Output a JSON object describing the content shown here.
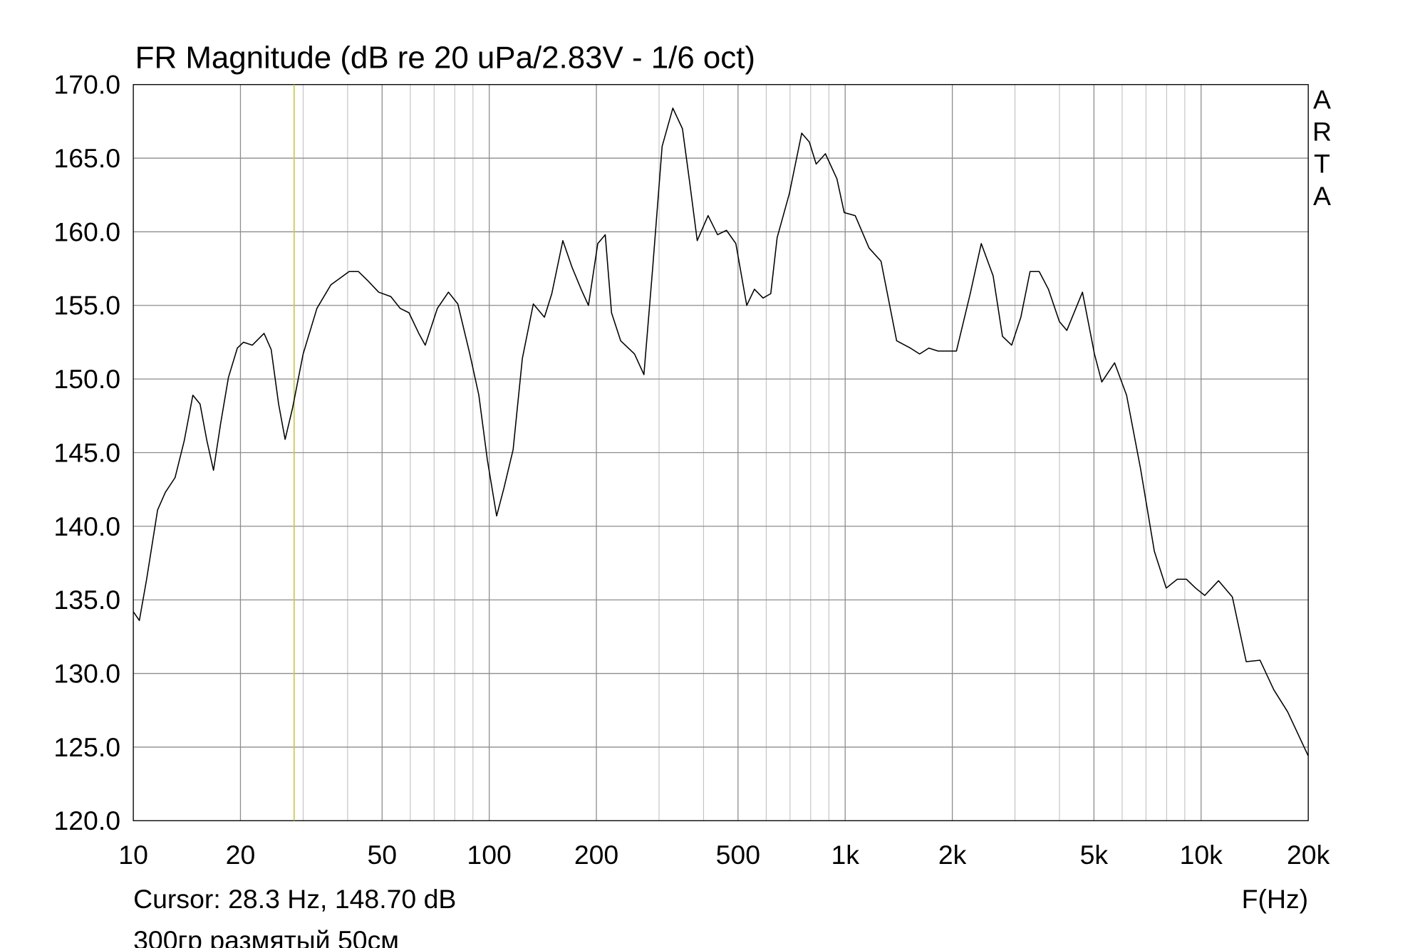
{
  "chart_data": {
    "type": "line",
    "title": "FR Magnitude (dB re 20 uPa/2.83V - 1/6 oct)",
    "side_label": "ARTA",
    "x_axis_label": "F(Hz)",
    "cursor_text": "Cursor: 28.3 Hz, 148.70 dB",
    "cursor_x": 28.3,
    "cursor_color": "#c8c84a",
    "note": "300гр размятый 50см",
    "x_log": true,
    "grid": true,
    "grid_color": "#bdbdbd",
    "xlim": [
      10,
      20000
    ],
    "ylim": [
      120,
      170
    ],
    "xticks": [
      10,
      20,
      50,
      100,
      200,
      500,
      {
        "value": 1000,
        "label": "1k"
      },
      {
        "value": 2000,
        "label": "2k"
      },
      {
        "value": 5000,
        "label": "5k"
      },
      {
        "value": 10000,
        "label": "10k"
      },
      {
        "value": 20000,
        "label": "20k"
      }
    ],
    "xgrid_minor": [
      30,
      40,
      60,
      70,
      80,
      90,
      300,
      400,
      600,
      700,
      800,
      900,
      3000,
      4000,
      6000,
      7000,
      8000,
      9000
    ],
    "yticks": [
      {
        "value": 120,
        "label": "120.0"
      },
      {
        "value": 125,
        "label": "125.0"
      },
      {
        "value": 130,
        "label": "130.0"
      },
      {
        "value": 135,
        "label": "135.0"
      },
      {
        "value": 140,
        "label": "140.0"
      },
      {
        "value": 145,
        "label": "145.0"
      },
      {
        "value": 150,
        "label": "150.0"
      },
      {
        "value": 155,
        "label": "155.0"
      },
      {
        "value": 160,
        "label": "160.0"
      },
      {
        "value": 165,
        "label": "165.0"
      },
      {
        "value": 170,
        "label": "170.0"
      }
    ],
    "x": [
      10,
      10.4,
      10.9,
      11.7,
      12.3,
      13.1,
      13.9,
      14.7,
      15.4,
      16.1,
      16.8,
      17.6,
      18.5,
      19.6,
      20.4,
      21.6,
      23.3,
      24.4,
      25.6,
      26.7,
      28.0,
      30.0,
      32.8,
      35.9,
      40.4,
      42.9,
      45.5,
      48.9,
      52.9,
      56.2,
      59.5,
      63.4,
      66.1,
      71.5,
      76.8,
      81.6,
      88.2,
      93.5,
      98.8,
      104.9,
      110,
      116.7,
      123.9,
      133,
      142.9,
      149.9,
      161,
      170.8,
      181.2,
      190,
      201.8,
      211.8,
      220.6,
      234,
      256,
      272,
      288,
      306,
      328,
      349,
      366,
      384,
      412,
      438,
      464,
      493,
      529,
      556,
      588,
      618,
      644,
      697,
      755,
      793,
      829,
      880,
      948,
      994,
      1067,
      1167,
      1261,
      1395,
      1525,
      1619,
      1718,
      1824,
      2054,
      2246,
      2412,
      2605,
      2767,
      2936,
      3116,
      3307,
      3509,
      3724,
      3998,
      4195,
      4642,
      5016,
      5260,
      5714,
      6175,
      6760,
      7390,
      7980,
      8572,
      9097,
      9650,
      10240,
      11196,
      12240,
      13390,
      14640,
      16000,
      17500,
      20000
    ],
    "series": [
      {
        "color": "#000000",
        "values": [
          134.2,
          133.6,
          136.4,
          141.1,
          142.3,
          143.3,
          145.8,
          148.9,
          148.3,
          145.8,
          143.8,
          147.0,
          150.1,
          152.1,
          152.5,
          152.3,
          153.1,
          152.0,
          148.3,
          145.9,
          148.0,
          151.7,
          154.8,
          156.4,
          157.3,
          157.3,
          156.7,
          155.9,
          155.6,
          154.8,
          154.5,
          153.1,
          152.3,
          154.8,
          155.9,
          155.1,
          151.7,
          148.9,
          144.5,
          140.7,
          142.6,
          145.2,
          151.4,
          155.1,
          154.2,
          155.8,
          159.4,
          157.6,
          156.1,
          155.0,
          159.2,
          159.8,
          154.5,
          152.6,
          151.7,
          150.3,
          157.6,
          165.8,
          168.4,
          167.0,
          163.3,
          159.4,
          161.1,
          159.8,
          160.1,
          159.2,
          155.0,
          156.1,
          155.5,
          155.8,
          159.6,
          162.6,
          166.7,
          166.1,
          164.6,
          165.3,
          163.6,
          161.3,
          161.1,
          158.9,
          158.0,
          152.6,
          152.1,
          151.7,
          152.1,
          151.9,
          151.9,
          155.8,
          159.2,
          157.0,
          152.9,
          152.3,
          154.2,
          157.3,
          157.3,
          156.1,
          153.9,
          153.3,
          155.9,
          151.7,
          149.8,
          151.1,
          148.9,
          143.9,
          138.3,
          135.8,
          136.4,
          136.4,
          135.8,
          135.3,
          136.3,
          135.2,
          130.8,
          130.9,
          128.9,
          127.4,
          124.4
        ]
      }
    ]
  }
}
